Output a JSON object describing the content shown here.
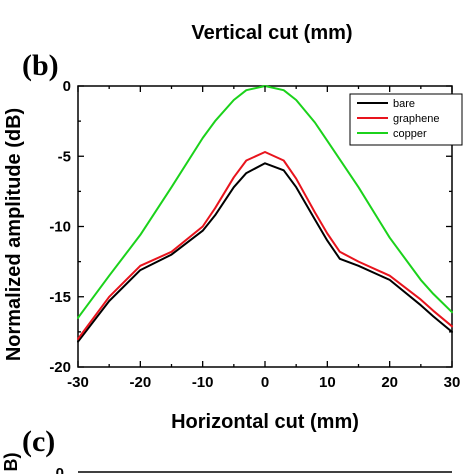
{
  "top_panel": {
    "xlabel": "Vertical cut (mm)"
  },
  "panel_b": {
    "label": "(b)"
  },
  "panel_c": {
    "label": "(c)",
    "ylabel_fragment": "B)",
    "first_tick": "0"
  },
  "chart_data": {
    "type": "line",
    "title": "",
    "xlabel": "Horizontal cut (mm)",
    "ylabel": "Normalized amplitude (dB)",
    "xlim": [
      -30,
      30
    ],
    "ylim": [
      -20,
      0
    ],
    "xticks": [
      -30,
      -20,
      -10,
      0,
      10,
      20,
      30
    ],
    "xtick_labels": [
      "-30",
      "-20",
      "-10",
      "0",
      "10",
      "20",
      "30"
    ],
    "yticks": [
      0,
      -5,
      -10,
      -15,
      -20
    ],
    "ytick_labels": [
      "0",
      "-5",
      "-10",
      "-15",
      "-20"
    ],
    "grid": false,
    "legend_position": "top-right",
    "series": [
      {
        "name": "bare",
        "color": "#000000",
        "x": [
          -30,
          -25,
          -20,
          -15,
          -10,
          -8,
          -5,
          -3,
          0,
          3,
          5,
          8,
          10,
          12,
          15,
          20,
          25,
          27,
          30
        ],
        "y": [
          -18.2,
          -15.3,
          -13.1,
          -12.0,
          -10.3,
          -9.2,
          -7.2,
          -6.2,
          -5.5,
          -6.0,
          -7.2,
          -9.5,
          -11.0,
          -12.3,
          -12.8,
          -13.8,
          -15.6,
          -16.4,
          -17.5
        ]
      },
      {
        "name": "graphene",
        "color": "#e8141d",
        "x": [
          -30,
          -25,
          -20,
          -15,
          -10,
          -8,
          -5,
          -3,
          0,
          3,
          5,
          8,
          10,
          12,
          15,
          20,
          25,
          27,
          30
        ],
        "y": [
          -18.0,
          -15.0,
          -12.8,
          -11.8,
          -10.0,
          -8.7,
          -6.5,
          -5.3,
          -4.7,
          -5.3,
          -6.6,
          -9.0,
          -10.5,
          -11.8,
          -12.5,
          -13.5,
          -15.2,
          -16.0,
          -17.1
        ]
      },
      {
        "name": "copper",
        "color": "#1bd21b",
        "x": [
          -30,
          -25,
          -20,
          -15,
          -10,
          -8,
          -5,
          -3,
          0,
          3,
          5,
          8,
          10,
          15,
          20,
          25,
          27,
          30
        ],
        "y": [
          -16.5,
          -13.5,
          -10.6,
          -7.2,
          -3.7,
          -2.5,
          -1.0,
          -0.3,
          0.0,
          -0.3,
          -1.0,
          -2.6,
          -3.9,
          -7.2,
          -10.8,
          -13.8,
          -14.8,
          -16.1
        ]
      }
    ]
  }
}
